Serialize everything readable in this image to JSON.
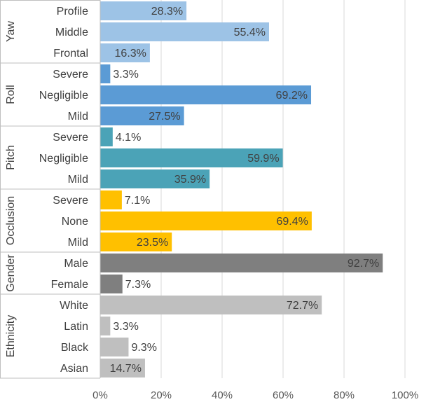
{
  "chart_data": {
    "type": "bar",
    "orientation": "horizontal",
    "xlim": [
      0,
      100
    ],
    "x_ticks": [
      "0%",
      "20%",
      "40%",
      "60%",
      "80%",
      "100%"
    ],
    "grid": true,
    "groups": [
      {
        "name": "Yaw",
        "color": "#9dc3e6",
        "bars": [
          {
            "category": "Profile",
            "value": 28.3,
            "label": "28.3%"
          },
          {
            "category": "Middle",
            "value": 55.4,
            "label": "55.4%"
          },
          {
            "category": "Frontal",
            "value": 16.3,
            "label": "16.3%"
          }
        ]
      },
      {
        "name": "Roll",
        "color": "#5b9bd5",
        "bars": [
          {
            "category": "Severe",
            "value": 3.3,
            "label": "3.3%"
          },
          {
            "category": "Negligible",
            "value": 69.2,
            "label": "69.2%"
          },
          {
            "category": "Mild",
            "value": 27.5,
            "label": "27.5%"
          }
        ]
      },
      {
        "name": "Pitch",
        "color": "#4ba3b7",
        "bars": [
          {
            "category": "Severe",
            "value": 4.1,
            "label": "4.1%"
          },
          {
            "category": "Negligible",
            "value": 59.9,
            "label": "59.9%"
          },
          {
            "category": "Mild",
            "value": 35.9,
            "label": "35.9%"
          }
        ]
      },
      {
        "name": "Occlusion",
        "color": "#ffc000",
        "bars": [
          {
            "category": "Severe",
            "value": 7.1,
            "label": "7.1%"
          },
          {
            "category": "None",
            "value": 69.4,
            "label": "69.4%"
          },
          {
            "category": "Mild",
            "value": 23.5,
            "label": "23.5%"
          }
        ]
      },
      {
        "name": "Gender",
        "color": "#7f7f7f",
        "bars": [
          {
            "category": "Male",
            "value": 92.7,
            "label": "92.7%"
          },
          {
            "category": "Female",
            "value": 7.3,
            "label": "7.3%"
          }
        ]
      },
      {
        "name": "Ethnicity",
        "color": "#bfbfbf",
        "bars": [
          {
            "category": "White",
            "value": 72.7,
            "label": "72.7%"
          },
          {
            "category": "Latin",
            "value": 3.3,
            "label": "3.3%"
          },
          {
            "category": "Black",
            "value": 9.3,
            "label": "9.3%"
          },
          {
            "category": "Asian",
            "value": 14.7,
            "label": "14.7%"
          }
        ]
      }
    ]
  }
}
